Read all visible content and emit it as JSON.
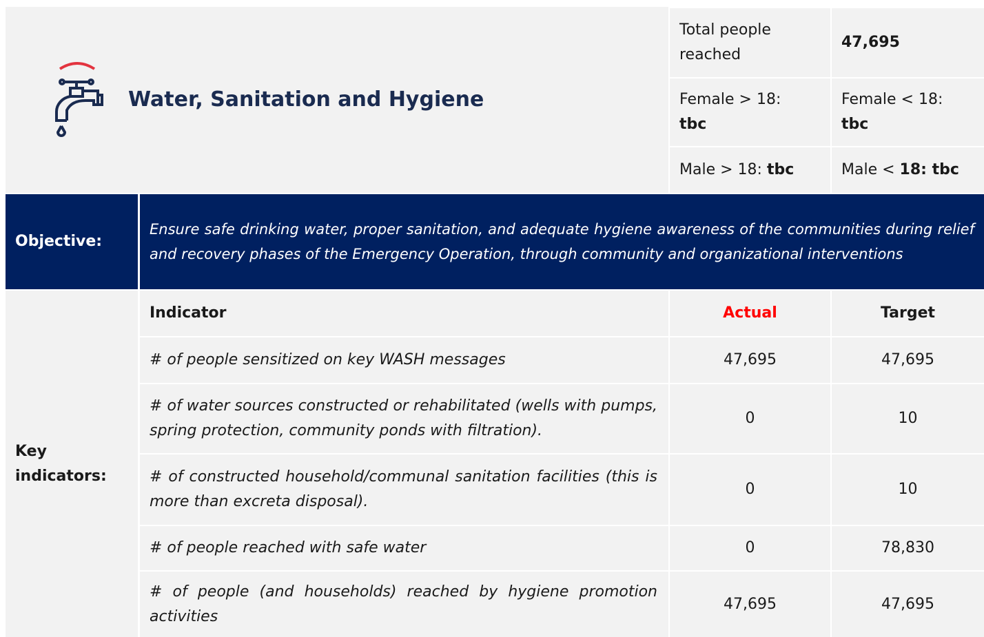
{
  "header": {
    "title": "Water, Sanitation and Hygiene",
    "total_label": "Total people reached",
    "total_value": "47,695",
    "breakdown": [
      {
        "label": "Female > 18:",
        "value": "tbc"
      },
      {
        "label": "Female < 18:",
        "value": "tbc"
      },
      {
        "label": "Male > 18:",
        "value": "tbc"
      },
      {
        "label": "Male <",
        "value": "18: tbc"
      }
    ]
  },
  "objective": {
    "label": "Objective:",
    "text": "Ensure safe drinking water, proper sanitation, and adequate hygiene awareness of the communities during relief and recovery phases of the Emergency Operation, through community and organizational interventions"
  },
  "table": {
    "label": "Key indicators:",
    "columns": [
      "Indicator",
      "Actual",
      "Target"
    ],
    "rows": [
      [
        "# of people sensitized on key WASH messages",
        "47,695",
        "47,695"
      ],
      [
        "# of water sources constructed or rehabilitated (wells with pumps, spring protection, community ponds with filtration).",
        "0",
        "10"
      ],
      [
        "# of constructed household/communal sanitation facilities (this is more than excreta disposal).",
        "0",
        "10"
      ],
      [
        "# of people reached with safe water",
        "0",
        "78,830"
      ],
      [
        "# of people (and households) reached by hygiene promotion activities",
        "47,695",
        "47,695"
      ]
    ]
  }
}
